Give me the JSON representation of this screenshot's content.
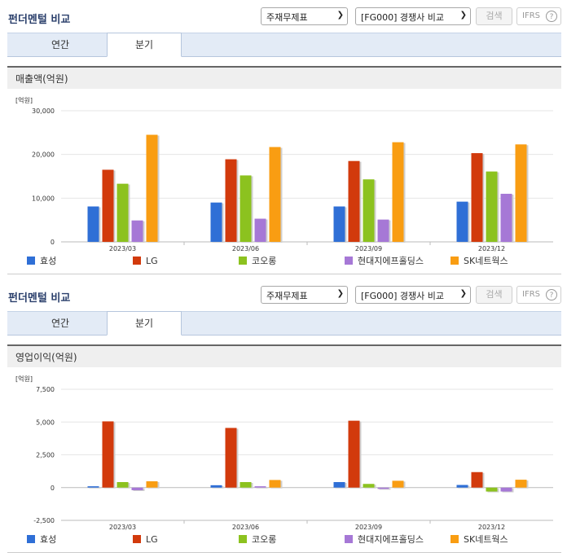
{
  "panels": [
    {
      "title": "펀더멘털 비교",
      "select1": "주재무제표",
      "select2": "[FG000] 경쟁사 비교",
      "search_label": "검색",
      "ifrs_label": "IFRS",
      "ifrs_help": "?",
      "tabs": [
        {
          "label": "연간",
          "active": false
        },
        {
          "label": "분기",
          "active": true
        }
      ],
      "chart_title": "매출액(억원)",
      "unit": "[억원]"
    },
    {
      "title": "펀더멘털 비교",
      "select1": "주재무제표",
      "select2": "[FG000] 경쟁사 비교",
      "search_label": "검색",
      "ifrs_label": "IFRS",
      "ifrs_help": "?",
      "tabs": [
        {
          "label": "연간",
          "active": false
        },
        {
          "label": "분기",
          "active": true
        }
      ],
      "chart_title": "영업이익(억원)",
      "unit": "[억원]"
    }
  ],
  "colors": {
    "효성": "#2f6fd6",
    "LG": "#d23a0c",
    "코오롱": "#8cc21f",
    "현대지에프홀딩스": "#a678d6",
    "SK네트웍스": "#f99d12"
  },
  "chart_data": [
    {
      "type": "bar",
      "title": "매출액(억원)",
      "ylabel": "[억원]",
      "categories": [
        "2023/03",
        "2023/06",
        "2023/09",
        "2023/12"
      ],
      "ylim": [
        0,
        30000
      ],
      "yticks": [
        0,
        10000,
        20000,
        30000
      ],
      "ytick_labels": [
        "0",
        "10,000",
        "20,000",
        "30,000"
      ],
      "grid": true,
      "legend": "bottom",
      "series": [
        {
          "name": "효성",
          "values": [
            8100,
            9000,
            8100,
            9200
          ]
        },
        {
          "name": "LG",
          "values": [
            16500,
            18900,
            18500,
            20300
          ]
        },
        {
          "name": "코오롱",
          "values": [
            13300,
            15200,
            14300,
            16100
          ]
        },
        {
          "name": "현대지에프홀딩스",
          "values": [
            4900,
            5300,
            5100,
            11000
          ]
        },
        {
          "name": "SK네트웍스",
          "values": [
            24500,
            21700,
            22800,
            22300
          ]
        }
      ]
    },
    {
      "type": "bar",
      "title": "영업이익(억원)",
      "ylabel": "[억원]",
      "categories": [
        "2023/03",
        "2023/06",
        "2023/09",
        "2023/12"
      ],
      "ylim": [
        -2500,
        7500
      ],
      "yticks": [
        -2500,
        0,
        2500,
        5000,
        7500
      ],
      "ytick_labels": [
        "-2,500",
        "0",
        "2,500",
        "5,000",
        "7,500"
      ],
      "grid": true,
      "legend": "bottom",
      "series": [
        {
          "name": "효성",
          "values": [
            100,
            180,
            420,
            200
          ]
        },
        {
          "name": "LG",
          "values": [
            5050,
            4550,
            5100,
            1180
          ]
        },
        {
          "name": "코오롱",
          "values": [
            420,
            420,
            280,
            -300
          ]
        },
        {
          "name": "현대지에프홀딩스",
          "values": [
            -200,
            100,
            -100,
            -300
          ]
        },
        {
          "name": "SK네트웍스",
          "values": [
            480,
            580,
            520,
            600
          ]
        }
      ]
    }
  ]
}
